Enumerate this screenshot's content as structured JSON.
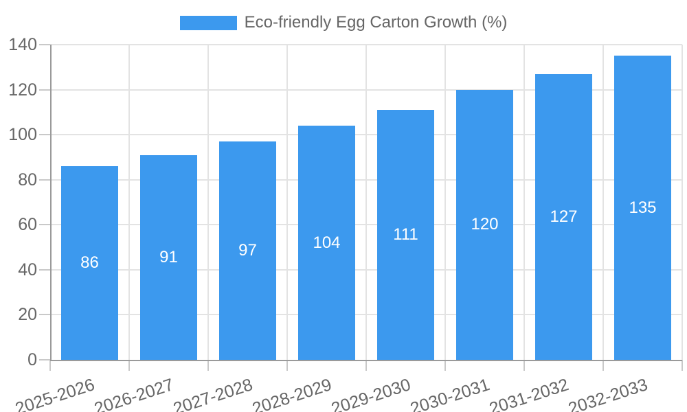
{
  "legend": {
    "label": "Eco-friendly Egg Carton Growth (%)"
  },
  "colors": {
    "bar": "#3C99EE",
    "grid": "#E3E3E3",
    "axis": "#9A9A9A",
    "tick_mark": "#C9C9C9",
    "tick_text": "#666666",
    "bar_label_text": "#FFFFFF",
    "background": "#FFFFFF"
  },
  "chart_data": {
    "type": "bar",
    "title": "Eco-friendly Egg Carton Growth (%)",
    "categories": [
      "2025-2026",
      "2026-2027",
      "2027-2028",
      "2028-2029",
      "2029-2030",
      "2030-2031",
      "2031-2032",
      "2032-2033"
    ],
    "values": [
      86,
      91,
      97,
      104,
      111,
      120,
      127,
      135
    ],
    "series": [
      {
        "name": "Eco-friendly Egg Carton Growth (%)",
        "values": [
          86,
          91,
          97,
          104,
          111,
          120,
          127,
          135
        ]
      }
    ],
    "bar_value_labels": [
      86,
      91,
      97,
      104,
      111,
      120,
      127,
      135
    ],
    "xlabel": "",
    "ylabel": "",
    "ylim": [
      0,
      140
    ],
    "ytick_step": 20,
    "yticks": [
      0,
      20,
      40,
      60,
      80,
      100,
      120,
      140
    ],
    "grid": true,
    "legend_position": "top"
  }
}
